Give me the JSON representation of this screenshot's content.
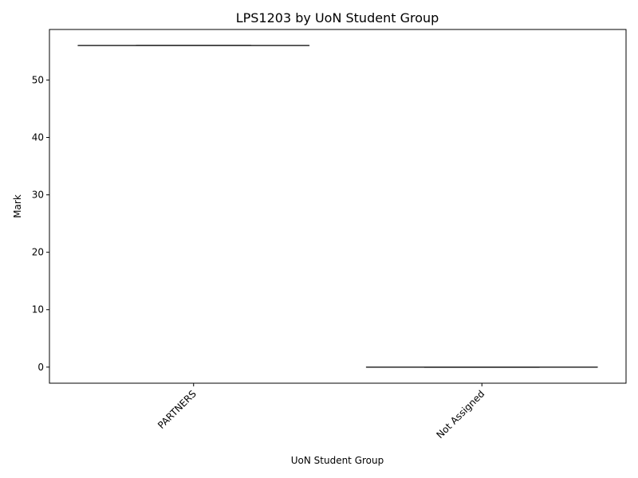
{
  "chart_data": {
    "type": "box",
    "title": "LPS1203 by UoN Student Group",
    "xlabel": "UoN Student Group",
    "ylabel": "Mark",
    "categories": [
      "PARTNERS",
      "Not Assigned"
    ],
    "series": [
      {
        "values": [
          {
            "min": 56,
            "q1": 56,
            "median": 56,
            "q3": 56,
            "max": 56
          },
          {
            "min": 0,
            "q1": 0,
            "median": 0,
            "q3": 0,
            "max": 0
          }
        ]
      }
    ],
    "ylim": [
      -2.8,
      58.8
    ],
    "yticks": [
      0,
      10,
      20,
      30,
      40,
      50
    ],
    "x_tick_rotation_deg": 45,
    "grid": false,
    "line_color": "#3f3f3f"
  }
}
